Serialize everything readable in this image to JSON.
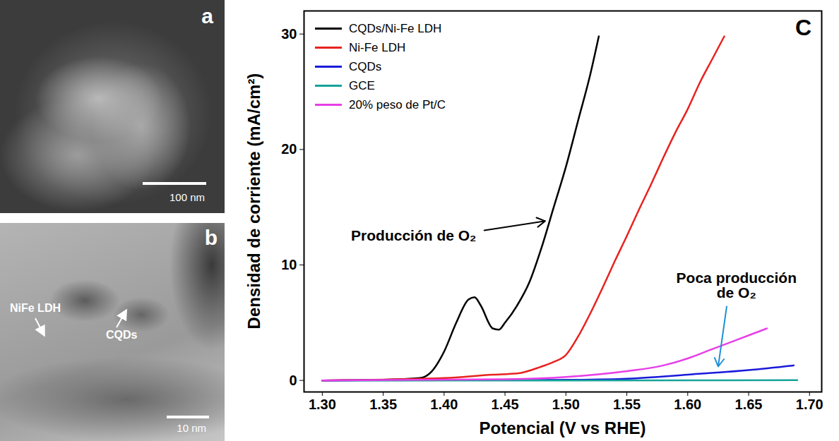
{
  "images": [
    {
      "label": "a",
      "scale_bar": "100 nm"
    },
    {
      "label": "b",
      "scale_bar": "10 nm",
      "annotations": [
        "NiFe LDH",
        "CQDs"
      ]
    }
  ],
  "chart_data": {
    "type": "line",
    "panel": "C",
    "xlabel": "Potencial (V vs RHE)",
    "ylabel": "Densidad de corriente (mA/cm²)",
    "xlim": [
      1.285,
      1.71
    ],
    "xticks": [
      {
        "value": 1.3,
        "label": "1.30"
      },
      {
        "value": 1.35,
        "label": "1.35"
      },
      {
        "value": 1.4,
        "label": "1.40"
      },
      {
        "value": 1.45,
        "label": "1.45"
      },
      {
        "value": 1.5,
        "label": "1.50"
      },
      {
        "value": 1.55,
        "label": "1.55"
      },
      {
        "value": 1.6,
        "label": "1.60"
      },
      {
        "value": 1.65,
        "label": "1.65"
      },
      {
        "value": 1.7,
        "label": "1.70"
      }
    ],
    "ylim": [
      -1,
      32
    ],
    "yticks": [
      0,
      10,
      20,
      30
    ],
    "legend": "upper left",
    "series": [
      {
        "name": "CQDs/Ni-Fe LDH",
        "color": "#000000",
        "x": [
          1.3,
          1.35,
          1.38,
          1.39,
          1.4,
          1.41,
          1.42,
          1.425,
          1.43,
          1.44,
          1.445,
          1.45,
          1.46,
          1.47,
          1.48,
          1.49,
          1.5,
          1.51,
          1.52,
          1.527
        ],
        "values": [
          0,
          0.05,
          0.2,
          0.8,
          2.5,
          5.0,
          7.0,
          7.2,
          6.5,
          4.5,
          4.4,
          5.0,
          6.5,
          8.5,
          11.5,
          15,
          18.5,
          22.5,
          26.5,
          29.8
        ]
      },
      {
        "name": "Ni-Fe LDH",
        "color": "#e8231f",
        "x": [
          1.3,
          1.4,
          1.44,
          1.46,
          1.48,
          1.49,
          1.5,
          1.51,
          1.52,
          1.53,
          1.54,
          1.55,
          1.56,
          1.57,
          1.58,
          1.59,
          1.6,
          1.61,
          1.62,
          1.63
        ],
        "values": [
          0,
          0.2,
          0.5,
          0.6,
          1.2,
          1.6,
          2.2,
          3.8,
          5.8,
          8,
          10.3,
          12.5,
          14.8,
          17,
          19.3,
          21.5,
          23.5,
          25.8,
          27.8,
          29.8
        ]
      },
      {
        "name": "CQDs",
        "color": "#1a1adb",
        "x": [
          1.3,
          1.5,
          1.55,
          1.6,
          1.65,
          1.687
        ],
        "values": [
          0,
          0.05,
          0.15,
          0.5,
          0.9,
          1.3
        ]
      },
      {
        "name": "GCE",
        "color": "#16a39a",
        "x": [
          1.3,
          1.5,
          1.69
        ],
        "values": [
          0,
          0,
          0.02
        ]
      },
      {
        "name": "20% peso de Pt/C",
        "color": "#e83ee8",
        "x": [
          1.3,
          1.45,
          1.5,
          1.55,
          1.58,
          1.6,
          1.62,
          1.64,
          1.665
        ],
        "values": [
          0,
          0.1,
          0.3,
          0.8,
          1.3,
          1.9,
          2.7,
          3.5,
          4.5
        ]
      }
    ],
    "annotations": [
      {
        "text": "Producción de O₂",
        "x": 1.375,
        "y": 12.5,
        "color": "#000000",
        "arrow_start": [
          1.433,
          13.0
        ],
        "arrow_end": [
          1.483,
          13.8
        ]
      },
      {
        "text": "Poca producción\nde O₂",
        "x": 1.64,
        "y": 8.2,
        "color": "#1e90d6",
        "arrow_start": [
          1.632,
          6.4
        ],
        "arrow_end": [
          1.625,
          1.2
        ]
      }
    ]
  }
}
